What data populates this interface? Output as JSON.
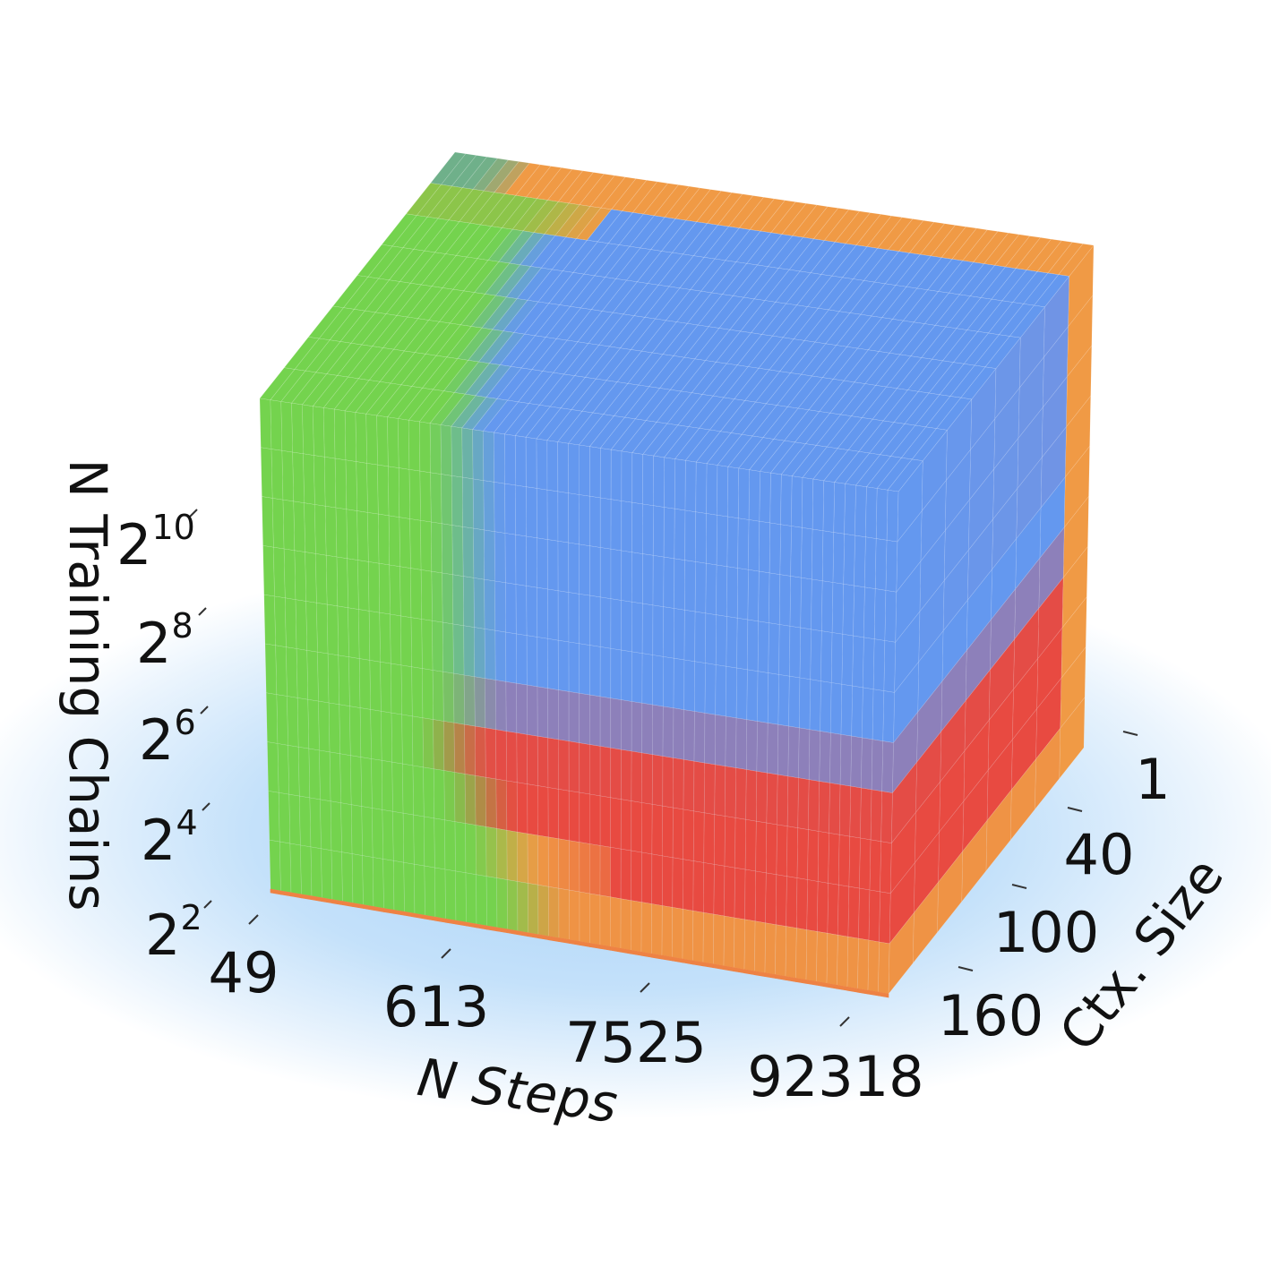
{
  "chart_data": {
    "type": "heatmap",
    "subtype": "3d-voxel-cube",
    "axes": {
      "x": {
        "label": "N Steps",
        "scale": "log",
        "ticks": [
          "49",
          "613",
          "7525",
          "92318"
        ]
      },
      "y": {
        "label": "Ctx. Size",
        "ticks": [
          "1",
          "40",
          "100",
          "160"
        ]
      },
      "z": {
        "label": "N Training Chains",
        "scale": "log2",
        "ticks": [
          {
            "base": "2",
            "exp": "2"
          },
          {
            "base": "2",
            "exp": "4"
          },
          {
            "base": "2",
            "exp": "6"
          },
          {
            "base": "2",
            "exp": "8"
          },
          {
            "base": "2",
            "exp": "10"
          }
        ]
      }
    },
    "grid": {
      "nx": 60,
      "nz": 10,
      "ny": 8
    },
    "palette": {
      "green": "#74d34e",
      "blue": "#6498ef",
      "red": "#e84a41",
      "orange": "#f09a45",
      "halo": "#bcdcf8"
    }
  }
}
